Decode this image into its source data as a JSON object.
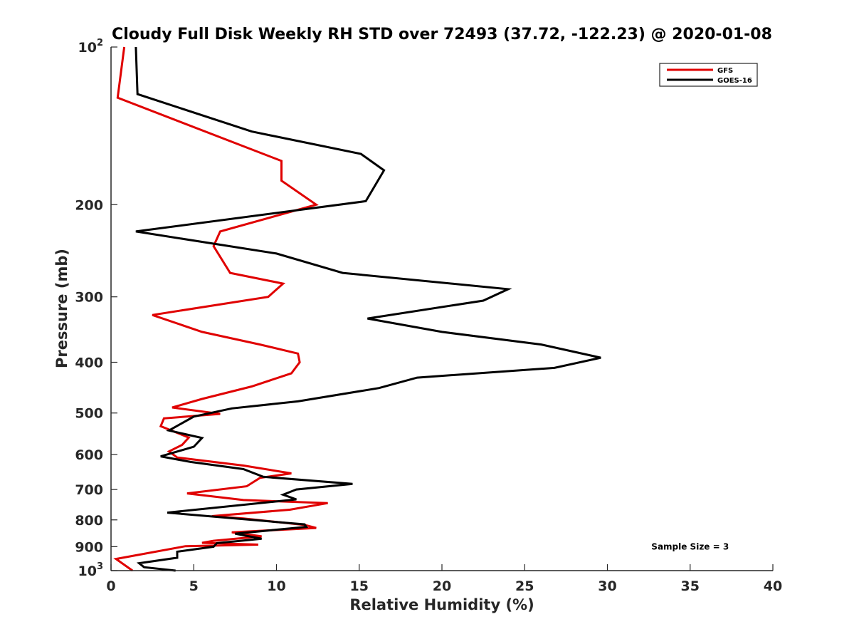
{
  "chart_data": {
    "type": "line",
    "title": "Cloudy Full Disk Weekly RH STD over 72493 (37.72, -122.23) @ 2020-01-08",
    "xlabel": "Relative Humidity (%)",
    "ylabel": "Pressure (mb)",
    "xlim": [
      0,
      40
    ],
    "ylim": [
      100,
      1000
    ],
    "y_scale": "log",
    "y_reversed": true,
    "x_ticks": [
      "0",
      "5",
      "10",
      "15",
      "20",
      "25",
      "30",
      "35",
      "40"
    ],
    "y_ticks": [
      {
        "value": 100,
        "base": "10",
        "exp": "2"
      },
      {
        "value": 200,
        "label": "200"
      },
      {
        "value": 300,
        "label": "300"
      },
      {
        "value": 400,
        "label": "400"
      },
      {
        "value": 500,
        "label": "500"
      },
      {
        "value": 600,
        "label": "600"
      },
      {
        "value": 700,
        "label": "700"
      },
      {
        "value": 800,
        "label": "800"
      },
      {
        "value": 900,
        "label": "900"
      },
      {
        "value": 1000,
        "base": "10",
        "exp": "3"
      }
    ],
    "legend_position": "top-right",
    "series": [
      {
        "name": "GFS",
        "color": "#e00000",
        "points": [
          [
            0.8,
            100
          ],
          [
            0.4,
            125
          ],
          [
            10.3,
            165
          ],
          [
            10.3,
            180
          ],
          [
            12.4,
            200
          ],
          [
            6.6,
            225
          ],
          [
            6.2,
            240
          ],
          [
            7.2,
            270
          ],
          [
            10.4,
            283
          ],
          [
            9.5,
            300
          ],
          [
            2.5,
            325
          ],
          [
            5.5,
            350
          ],
          [
            9.0,
            370
          ],
          [
            11.3,
            385
          ],
          [
            11.4,
            400
          ],
          [
            10.9,
            420
          ],
          [
            8.5,
            445
          ],
          [
            5.5,
            470
          ],
          [
            3.7,
            488
          ],
          [
            6.6,
            502
          ],
          [
            3.2,
            512
          ],
          [
            3.0,
            530
          ],
          [
            4.7,
            557
          ],
          [
            4.3,
            575
          ],
          [
            3.5,
            592
          ],
          [
            4.0,
            608
          ],
          [
            8.0,
            630
          ],
          [
            10.9,
            652
          ],
          [
            9.0,
            665
          ],
          [
            8.2,
            690
          ],
          [
            4.6,
            712
          ],
          [
            8.0,
            733
          ],
          [
            13.1,
            743
          ],
          [
            10.8,
            765
          ],
          [
            6.1,
            787
          ],
          [
            8.0,
            795
          ],
          [
            11.7,
            818
          ],
          [
            12.4,
            829
          ],
          [
            7.3,
            845
          ],
          [
            9.1,
            860
          ],
          [
            6.2,
            877
          ],
          [
            5.5,
            885
          ],
          [
            8.9,
            892
          ],
          [
            4.5,
            898
          ],
          [
            0.3,
            950
          ],
          [
            1.3,
            1000
          ]
        ]
      },
      {
        "name": "GOES-16",
        "color": "#000000",
        "points": [
          [
            1.5,
            100
          ],
          [
            1.6,
            123
          ],
          [
            8.5,
            145
          ],
          [
            15.1,
            160
          ],
          [
            16.5,
            172
          ],
          [
            15.4,
            197
          ],
          [
            1.5,
            225
          ],
          [
            10.0,
            248
          ],
          [
            14.0,
            270
          ],
          [
            24.0,
            290
          ],
          [
            22.5,
            305
          ],
          [
            15.5,
            330
          ],
          [
            20.0,
            350
          ],
          [
            26.0,
            370
          ],
          [
            29.6,
            392
          ],
          [
            26.8,
            410
          ],
          [
            18.5,
            428
          ],
          [
            16.2,
            448
          ],
          [
            11.3,
            475
          ],
          [
            7.3,
            490
          ],
          [
            5.0,
            508
          ],
          [
            3.5,
            540
          ],
          [
            5.5,
            558
          ],
          [
            5.0,
            580
          ],
          [
            3.0,
            605
          ],
          [
            4.8,
            620
          ],
          [
            8.0,
            640
          ],
          [
            9.2,
            662
          ],
          [
            14.6,
            683
          ],
          [
            11.2,
            700
          ],
          [
            10.4,
            716
          ],
          [
            11.2,
            731
          ],
          [
            3.4,
            775
          ],
          [
            11.7,
            816
          ],
          [
            11.8,
            825
          ],
          [
            7.5,
            850
          ],
          [
            9.1,
            869
          ],
          [
            6.4,
            886
          ],
          [
            6.2,
            900
          ],
          [
            4.0,
            920
          ],
          [
            4.0,
            945
          ],
          [
            1.7,
            968
          ],
          [
            2.0,
            985
          ],
          [
            3.9,
            1000
          ]
        ]
      }
    ],
    "annotations": [
      {
        "text": "Sample Size = 3",
        "x": 35,
        "y": 900
      }
    ]
  }
}
